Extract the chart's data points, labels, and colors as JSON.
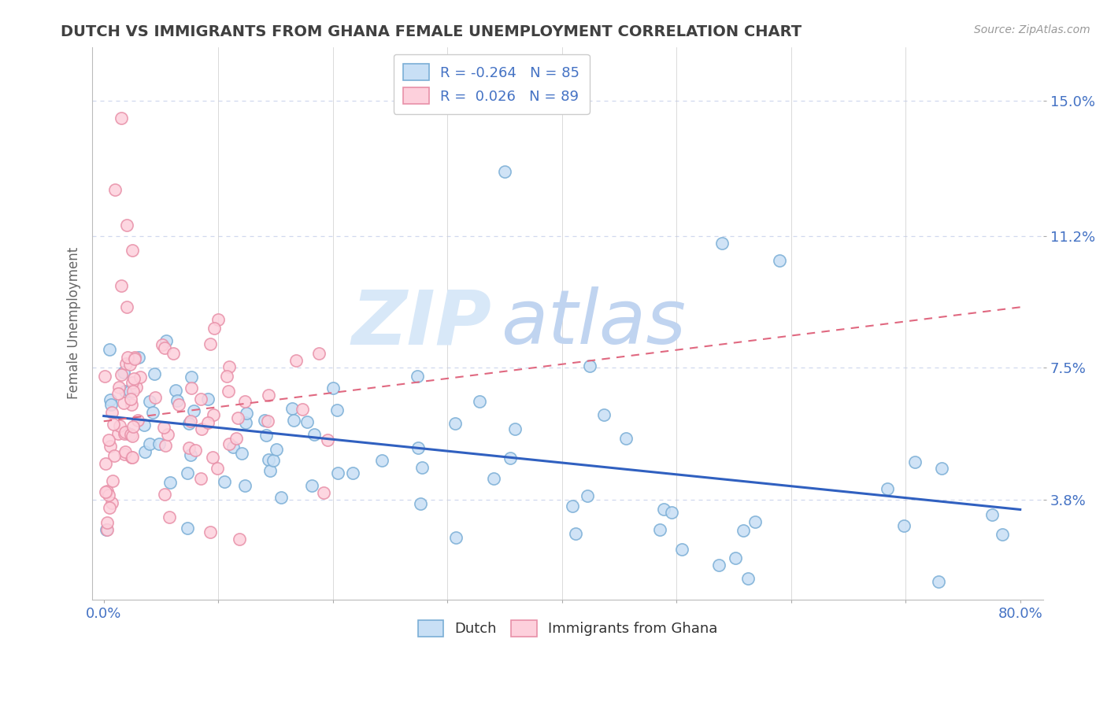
{
  "title": "DUTCH VS IMMIGRANTS FROM GHANA FEMALE UNEMPLOYMENT CORRELATION CHART",
  "source_text": "Source: ZipAtlas.com",
  "ylabel": "Female Unemployment",
  "xmin": 0.0,
  "xmax": 80.0,
  "ymin": 1.0,
  "ymax": 16.5,
  "yticks": [
    3.8,
    7.5,
    11.2,
    15.0
  ],
  "ytick_labels": [
    "3.8%",
    "7.5%",
    "11.2%",
    "15.0%"
  ],
  "dutch_face_color": "#c8dff5",
  "dutch_edge_color": "#7aaed6",
  "ghana_face_color": "#fdd0dc",
  "ghana_edge_color": "#e890a8",
  "trend_dutch_color": "#3060c0",
  "trend_ghana_color": "#e06880",
  "watermark_zip": "ZIP",
  "watermark_atlas": "atlas",
  "watermark_color_zip": "#d0dff5",
  "watermark_color_atlas": "#b8cce8",
  "background_color": "#ffffff",
  "grid_color": "#d0d8ee",
  "title_color": "#404040",
  "tick_label_color": "#4472c4",
  "legend_label_color": "#4472c4",
  "dutch_R": -0.264,
  "dutch_N": 85,
  "ghana_R": 0.026,
  "ghana_N": 89
}
